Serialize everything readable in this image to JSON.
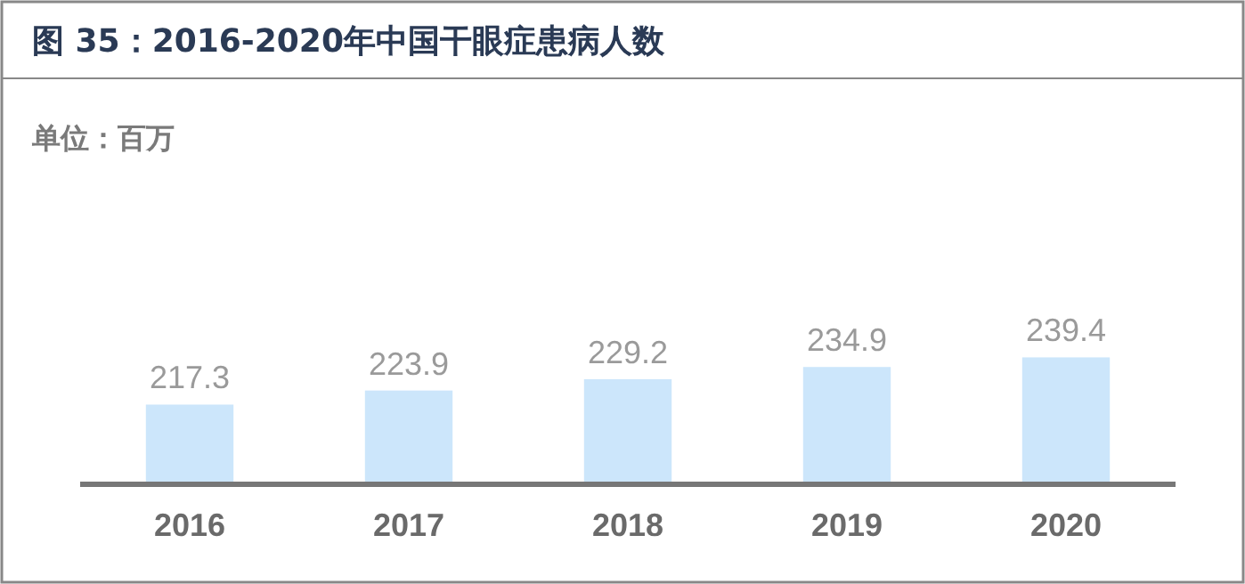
{
  "chart_data": {
    "type": "bar",
    "title": "图 35：2016-2020年中国干眼症患病人数",
    "subtitle": "单位：百万",
    "categories": [
      "2016",
      "2017",
      "2018",
      "2019",
      "2020"
    ],
    "values": [
      217.3,
      223.9,
      229.2,
      234.9,
      239.4
    ],
    "color": "#cce6fb",
    "ylim": [
      180,
      240
    ],
    "data_labels": true,
    "grid": false
  }
}
